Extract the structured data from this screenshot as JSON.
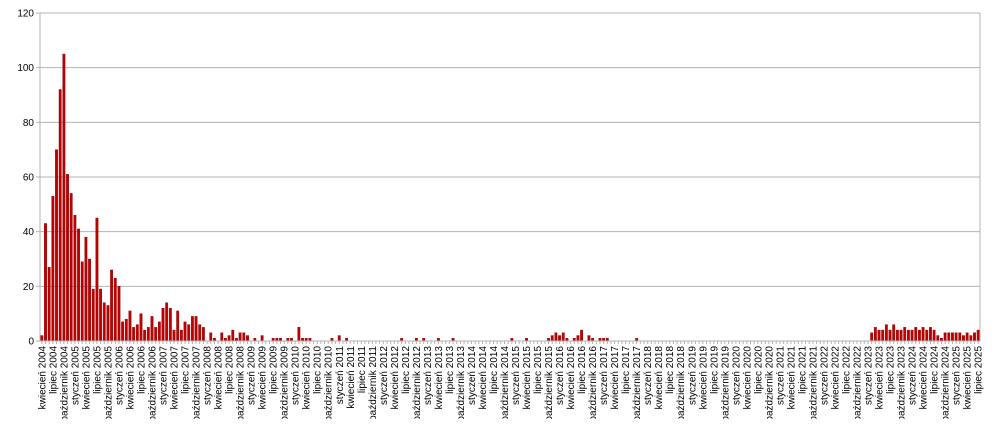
{
  "chart_data": {
    "type": "bar",
    "title": "",
    "xlabel": "",
    "ylabel": "",
    "ylim": [
      0,
      120
    ],
    "y_ticks": [
      0,
      20,
      40,
      60,
      80,
      100,
      120
    ],
    "grid": true,
    "legend": "none",
    "bar_color": "#c00000",
    "bar_edge_color": "#8b0000",
    "grid_color": "#b3b3b3",
    "x_first_month": "kwiecień 2004",
    "x_tick_every_months": 3,
    "x_tick_labels": [
      "kwiecień 2004",
      "lipiec 2004",
      "październik 2004",
      "styczeń 2005",
      "kwiecień 2005",
      "lipiec 2005",
      "październik 2005",
      "styczeń 2006",
      "kwiecień 2006",
      "lipiec 2006",
      "październik 2006",
      "styczeń 2007",
      "kwiecień 2007",
      "lipiec 2007",
      "październik 2007",
      "styczeń 2008",
      "kwiecień 2008",
      "lipiec 2008",
      "październik 2008",
      "styczeń 2009",
      "kwiecień 2009",
      "lipiec 2009",
      "październik 2009",
      "styczeń 2010",
      "kwiecień 2010",
      "lipiec 2010",
      "październik 2010",
      "styczeń 2011",
      "kwiecień 2011",
      "lipiec 2011",
      "październik 2011",
      "styczeń 2012",
      "kwiecień 2012",
      "lipiec 2012",
      "październik 2012",
      "styczeń 2013",
      "kwiecień 2013",
      "lipiec 2013",
      "październik 2013",
      "styczeń 2014",
      "kwiecień 2014",
      "lipiec 2014",
      "październik 2014",
      "styczeń 2015",
      "kwiecień 2015",
      "lipiec 2015",
      "październik 2015",
      "styczeń 2016",
      "kwiecień 2016",
      "lipiec 2016",
      "październik 2016",
      "styczeń 2017",
      "kwiecień 2017",
      "lipiec 2017",
      "październik 2017",
      "styczeń 2018",
      "kwiecień 2018",
      "lipiec 2018",
      "październik 2018",
      "styczeń 2019",
      "kwiecień 2019",
      "lipiec 2019",
      "październik 2019",
      "styczeń 2020",
      "kwiecień 2020",
      "lipiec 2020",
      "październik 2020",
      "styczeń 2021",
      "kwiecień 2021",
      "lipiec 2021",
      "październik 2021",
      "styczeń 2022",
      "kwiecień 2022",
      "lipiec 2022",
      "październik 2022",
      "styczeń 2023",
      "kwiecień 2023",
      "lipiec 2023",
      "październik 2023",
      "styczeń 2024",
      "kwiecień 2024",
      "lipiec 2024",
      "październik 2024",
      "styczeń 2025",
      "kwiecień 2025",
      "lipiec 2025"
    ],
    "values": [
      2,
      43,
      27,
      53,
      70,
      92,
      105,
      61,
      54,
      46,
      41,
      29,
      38,
      30,
      19,
      45,
      19,
      14,
      13,
      26,
      23,
      20,
      7,
      8,
      11,
      5,
      6,
      10,
      4,
      5,
      9,
      5,
      7,
      12,
      14,
      12,
      4,
      11,
      4,
      7,
      6,
      9,
      9,
      6,
      5,
      0,
      3,
      1,
      0,
      3,
      1,
      2,
      4,
      1,
      3,
      3,
      2,
      0,
      1,
      0,
      2,
      0,
      0,
      1,
      1,
      1,
      0,
      1,
      1,
      0,
      5,
      1,
      1,
      1,
      0,
      0,
      0,
      0,
      0,
      1,
      0,
      2,
      0,
      1,
      0,
      0,
      0,
      0,
      0,
      0,
      0,
      0,
      0,
      0,
      0,
      0,
      0,
      0,
      1,
      0,
      0,
      0,
      1,
      0,
      1,
      0,
      0,
      0,
      1,
      0,
      0,
      0,
      1,
      0,
      0,
      0,
      0,
      0,
      0,
      0,
      0,
      0,
      0,
      0,
      0,
      0,
      0,
      0,
      1,
      0,
      0,
      0,
      1,
      0,
      0,
      0,
      0,
      0,
      1,
      2,
      3,
      2,
      3,
      1,
      0,
      1,
      2,
      4,
      0,
      2,
      1,
      0,
      1,
      1,
      1,
      0,
      0,
      0,
      0,
      0,
      0,
      0,
      1,
      0,
      0,
      0,
      0,
      0,
      0,
      0,
      0,
      0,
      0,
      0,
      0,
      0,
      0,
      0,
      0,
      0,
      0,
      0,
      0,
      0,
      0,
      0,
      0,
      0,
      0,
      0,
      0,
      0,
      0,
      0,
      0,
      0,
      0,
      0,
      0,
      0,
      0,
      0,
      0,
      0,
      0,
      0,
      0,
      0,
      0,
      0,
      0,
      0,
      0,
      0,
      0,
      0,
      0,
      0,
      0,
      0,
      0,
      0,
      0,
      0,
      0,
      0,
      3,
      5,
      4,
      4,
      6,
      4,
      6,
      4,
      4,
      5,
      4,
      4,
      5,
      4,
      5,
      4,
      5,
      4,
      2,
      1,
      3,
      3,
      3,
      3,
      3,
      2,
      3,
      2,
      3,
      4
    ]
  }
}
